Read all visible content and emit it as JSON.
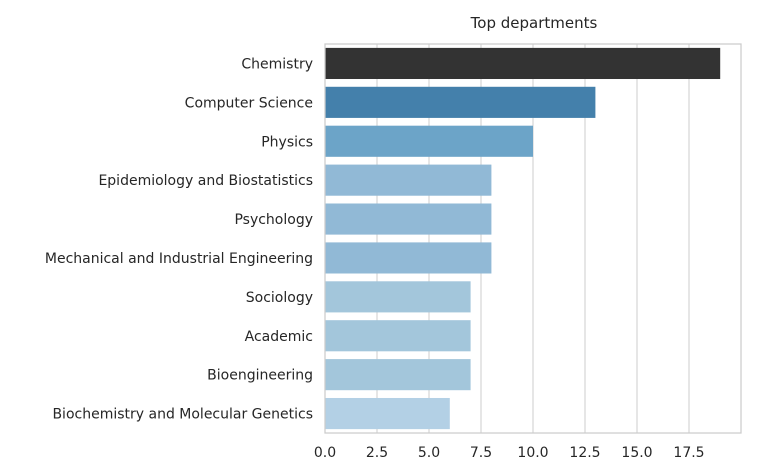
{
  "chart_data": {
    "type": "bar",
    "orientation": "horizontal",
    "title": "Top departments",
    "xlabel": "",
    "ylabel": "",
    "categories": [
      "Chemistry",
      "Computer Science",
      "Physics",
      "Epidemiology and Biostatistics",
      "Psychology",
      "Mechanical and Industrial Engineering",
      "Sociology",
      "Academic",
      "Bioengineering",
      "Biochemistry and Molecular Genetics"
    ],
    "values": [
      19,
      13,
      10,
      8,
      8,
      8,
      7,
      7,
      7,
      6
    ],
    "colors": [
      "#333333",
      "#4480ab",
      "#6ca4c8",
      "#91b9d6",
      "#91b9d6",
      "#91b9d6",
      "#a3c6db",
      "#a3c6db",
      "#a3c6db",
      "#b3d0e5"
    ],
    "xlim": [
      0,
      20
    ],
    "xticks": [
      0,
      2.5,
      5,
      7.5,
      10,
      12.5,
      15,
      17.5
    ],
    "xtick_labels": [
      "0.0",
      "2.5",
      "5.0",
      "7.5",
      "10.0",
      "12.5",
      "15.0",
      "17.5"
    ],
    "grid": "vertical",
    "legend": "none",
    "style": {
      "grid_color": "#cccccc",
      "frame_color": "#cccccc"
    }
  }
}
